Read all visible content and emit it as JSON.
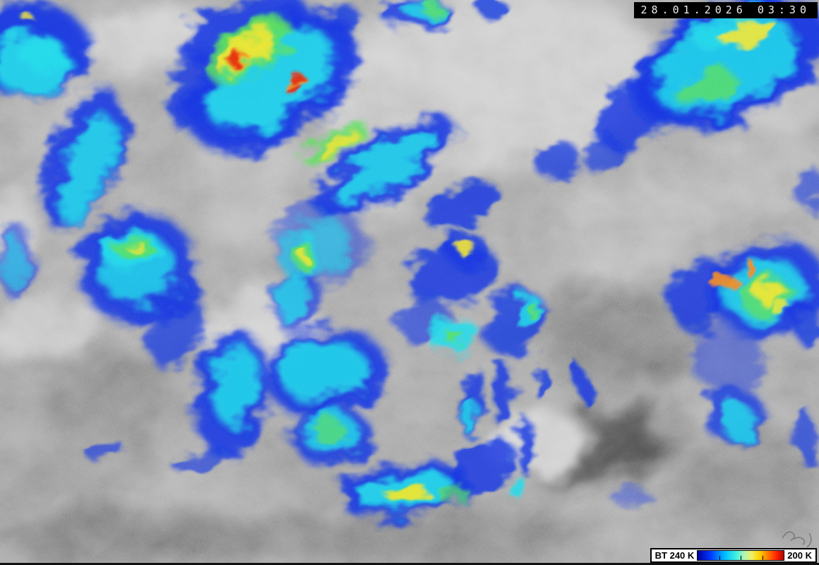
{
  "overlay": {
    "timestamp": "28.01.2026 03:30"
  },
  "legend": {
    "label_left": "BT 240 K",
    "label_right": "200 K",
    "tick_positions": [
      25,
      50,
      75
    ],
    "gradient_stops": [
      {
        "c": "#0000a0",
        "p": 0
      },
      {
        "c": "#0038ff",
        "p": 15
      },
      {
        "c": "#00c0ff",
        "p": 32
      },
      {
        "c": "#40f0e0",
        "p": 45
      },
      {
        "c": "#b8f5b0",
        "p": 55
      },
      {
        "c": "#f0f060",
        "p": 63
      },
      {
        "c": "#ffd000",
        "p": 72
      },
      {
        "c": "#ff7800",
        "p": 82
      },
      {
        "c": "#ff2800",
        "p": 91
      },
      {
        "c": "#b40000",
        "p": 100
      }
    ]
  },
  "scene": {
    "base_gray": "#989898",
    "gray_masses": [
      [
        690,
        110,
        240,
        130,
        -8,
        "#c2c2c2",
        18,
        1
      ],
      [
        560,
        220,
        120,
        80,
        -30,
        "#b5b5b5",
        16,
        0.9
      ],
      [
        205,
        55,
        95,
        45,
        -10,
        "#c6c6c6",
        14,
        0.95
      ],
      [
        100,
        190,
        60,
        90,
        15,
        "#adadad",
        16,
        0.8
      ],
      [
        355,
        260,
        70,
        110,
        0,
        "#b0b0b0",
        18,
        0.8
      ],
      [
        370,
        470,
        85,
        60,
        0,
        "#c6c6c6",
        12,
        0.95
      ],
      [
        70,
        470,
        90,
        45,
        -15,
        "#c0c0c0",
        14,
        0.9
      ],
      [
        40,
        560,
        70,
        50,
        0,
        "#8f8f8f",
        14,
        0.9
      ],
      [
        160,
        560,
        90,
        70,
        0,
        "#7a7a7a",
        16,
        0.9
      ],
      [
        90,
        680,
        140,
        60,
        -5,
        "#8a8a8a",
        18,
        0.95
      ],
      [
        300,
        700,
        150,
        50,
        -8,
        "#a5a5a5",
        14,
        0.9
      ],
      [
        580,
        760,
        250,
        50,
        0,
        "#767676",
        18,
        1
      ],
      [
        450,
        660,
        120,
        45,
        -5,
        "#8d8d8d",
        16,
        0.95
      ],
      [
        900,
        320,
        120,
        70,
        -20,
        "#b0b0b0",
        16,
        0.85
      ],
      [
        880,
        480,
        110,
        70,
        0,
        "#6f6f6f",
        18,
        0.9
      ],
      [
        860,
        628,
        135,
        55,
        -8,
        "#3d3d3d",
        10,
        0.95
      ],
      [
        1060,
        690,
        110,
        70,
        0,
        "#7d7d7d",
        16,
        0.95
      ],
      [
        1080,
        250,
        90,
        60,
        -10,
        "#aaaaaa",
        16,
        0.8
      ],
      [
        760,
        625,
        70,
        45,
        -10,
        "#d4d4d4",
        10,
        0.9
      ],
      [
        980,
        600,
        60,
        40,
        0,
        "#9a9a9a",
        12,
        0.8
      ],
      [
        620,
        440,
        90,
        60,
        0,
        "#9f9f9f",
        16,
        0.7
      ],
      [
        190,
        760,
        200,
        40,
        0,
        "#6e6e6e",
        16,
        1
      ],
      [
        1100,
        140,
        70,
        50,
        0,
        "#b8b8b8",
        14,
        0.8
      ],
      [
        20,
        330,
        40,
        60,
        0,
        "#c2c2c2",
        10,
        0.8
      ]
    ],
    "enhanced_layers": [
      {
        "name": "blue",
        "color": "#1433e0",
        "blobs": [
          [
            40,
            70,
            88,
            68,
            0,
            6,
            0.95
          ],
          [
            118,
            225,
            46,
            105,
            22,
            6,
            0.9
          ],
          [
            195,
            380,
            85,
            80,
            5,
            6,
            0.9
          ],
          [
            22,
            370,
            26,
            55,
            0,
            5,
            0.6
          ],
          [
            250,
            470,
            35,
            55,
            25,
            5,
            0.75
          ],
          [
            385,
            115,
            135,
            82,
            -33,
            6,
            0.95
          ],
          [
            345,
            40,
            95,
            38,
            -20,
            5,
            0.9
          ],
          [
            268,
            125,
            24,
            60,
            12,
            5,
            0.85
          ],
          [
            485,
            28,
            28,
            20,
            0,
            4,
            0.8
          ],
          [
            545,
            235,
            115,
            42,
            -32,
            5,
            0.9
          ],
          [
            655,
            292,
            55,
            22,
            -28,
            4,
            0.85
          ],
          [
            455,
            345,
            68,
            58,
            0,
            6,
            0.5
          ],
          [
            420,
            428,
            32,
            45,
            12,
            5,
            0.7
          ],
          [
            640,
            388,
            68,
            42,
            -12,
            5,
            0.85
          ],
          [
            658,
            350,
            28,
            26,
            0,
            4,
            0.85
          ],
          [
            600,
            452,
            40,
            28,
            -20,
            4,
            0.65
          ],
          [
            730,
            458,
            50,
            42,
            -38,
            5,
            0.8
          ],
          [
            328,
            558,
            52,
            92,
            6,
            6,
            0.9
          ],
          [
            462,
            528,
            88,
            62,
            -8,
            6,
            0.9
          ],
          [
            470,
            618,
            58,
            42,
            0,
            5,
            0.85
          ],
          [
            572,
            693,
            92,
            38,
            -10,
            5,
            0.9
          ],
          [
            680,
            662,
            55,
            30,
            -35,
            4,
            0.85
          ],
          [
            668,
            570,
            14,
            52,
            4,
            4,
            0.85
          ],
          [
            712,
            558,
            14,
            44,
            4,
            4,
            0.85
          ],
          [
            745,
            633,
            12,
            38,
            4,
            4,
            0.85
          ],
          [
            765,
            540,
            10,
            24,
            0,
            3,
            0.8
          ],
          [
            825,
            545,
            10,
            34,
            -20,
            3,
            0.85
          ],
          [
            895,
            705,
            28,
            13,
            0,
            4,
            0.45
          ],
          [
            1035,
            88,
            148,
            82,
            -23,
            6,
            0.95
          ],
          [
            900,
            158,
            68,
            38,
            -38,
            5,
            0.85
          ],
          [
            855,
            220,
            30,
            20,
            -30,
            4,
            0.7
          ],
          [
            1088,
            408,
            85,
            68,
            -12,
            6,
            0.9
          ],
          [
            992,
            418,
            45,
            55,
            8,
            5,
            0.85
          ],
          [
            1145,
            460,
            22,
            30,
            0,
            4,
            0.8
          ],
          [
            1030,
            508,
            55,
            45,
            0,
            5,
            0.5
          ],
          [
            1040,
            588,
            42,
            42,
            0,
            5,
            0.8
          ],
          [
            1140,
            618,
            16,
            38,
            0,
            4,
            0.7
          ],
          [
            588,
            18,
            52,
            20,
            0,
            4,
            0.85
          ],
          [
            700,
            14,
            20,
            16,
            0,
            3,
            0.8
          ],
          [
            790,
            228,
            32,
            28,
            -30,
            4,
            0.75
          ],
          [
            1148,
            268,
            18,
            32,
            0,
            4,
            0.6
          ],
          [
            148,
            638,
            32,
            13,
            0,
            3,
            0.65
          ],
          [
            282,
            652,
            42,
            16,
            -6,
            3,
            0.65
          ]
        ]
      },
      {
        "name": "cyan",
        "color": "#22d9e9",
        "blobs": [
          [
            45,
            92,
            55,
            44,
            0,
            5,
            0.9
          ],
          [
            123,
            240,
            28,
            82,
            20,
            5,
            0.85
          ],
          [
            195,
            382,
            55,
            50,
            0,
            5,
            0.8
          ],
          [
            20,
            372,
            16,
            38,
            0,
            4,
            0.55
          ],
          [
            382,
            112,
            100,
            58,
            -33,
            5,
            0.9
          ],
          [
            545,
            235,
            85,
            26,
            -32,
            4,
            0.85
          ],
          [
            186,
            352,
            40,
            26,
            -8,
            4,
            0.9
          ],
          [
            458,
            348,
            38,
            42,
            0,
            5,
            0.6
          ],
          [
            414,
            424,
            18,
            36,
            12,
            4,
            0.75
          ],
          [
            643,
            476,
            36,
            24,
            -8,
            4,
            0.9
          ],
          [
            747,
            440,
            24,
            17,
            -35,
            3,
            0.85
          ],
          [
            333,
            545,
            33,
            58,
            6,
            5,
            0.85
          ],
          [
            456,
            524,
            62,
            43,
            -8,
            5,
            0.85
          ],
          [
            468,
            613,
            42,
            28,
            0,
            4,
            0.8
          ],
          [
            574,
            695,
            68,
            25,
            -10,
            4,
            0.9
          ],
          [
            1028,
            92,
            108,
            58,
            -23,
            5,
            0.85
          ],
          [
            1082,
            412,
            58,
            43,
            -12,
            5,
            0.85
          ],
          [
            731,
            688,
            12,
            17,
            0,
            3,
            0.85
          ],
          [
            1046,
            598,
            24,
            26,
            0,
            4,
            0.8
          ],
          [
            1040,
            40,
            58,
            28,
            -18,
            4,
            0.8
          ],
          [
            600,
            14,
            30,
            12,
            0,
            3,
            0.8
          ],
          [
            420,
            358,
            28,
            38,
            0,
            4,
            0.6
          ],
          [
            666,
            590,
            9,
            26,
            4,
            3,
            0.8
          ],
          [
            60,
            78,
            32,
            24,
            0,
            4,
            0.85
          ]
        ]
      },
      {
        "name": "green",
        "color": "#55dd55",
        "blobs": [
          [
            352,
            72,
            68,
            26,
            -28,
            4,
            0.85
          ],
          [
            356,
            50,
            55,
            16,
            -22,
            4,
            0.8
          ],
          [
            476,
            204,
            52,
            18,
            -28,
            4,
            0.8
          ],
          [
            189,
            350,
            28,
            16,
            -8,
            3,
            0.85
          ],
          [
            429,
            361,
            15,
            20,
            0,
            3,
            0.85
          ],
          [
            998,
            123,
            44,
            24,
            -18,
            4,
            0.8
          ],
          [
            1086,
            420,
            38,
            26,
            -12,
            4,
            0.8
          ],
          [
            647,
            481,
            13,
            9,
            -8,
            3,
            0.85
          ],
          [
            611,
            11,
            17,
            8,
            0,
            3,
            0.8
          ],
          [
            466,
            611,
            26,
            15,
            0,
            3,
            0.7
          ],
          [
            576,
            699,
            28,
            11,
            -8,
            3,
            0.8
          ],
          [
            753,
            439,
            11,
            7,
            -35,
            2,
            0.8
          ],
          [
            640,
            698,
            22,
            10,
            -15,
            3,
            0.7
          ]
        ]
      },
      {
        "name": "yellow",
        "color": "#f2e430",
        "blobs": [
          [
            350,
            76,
            48,
            14,
            -28,
            3,
            0.9
          ],
          [
            360,
            55,
            30,
            9,
            -22,
            3,
            0.8
          ],
          [
            480,
            206,
            34,
            10,
            -28,
            3,
            0.8
          ],
          [
            1060,
            46,
            40,
            18,
            -18,
            3,
            0.9
          ],
          [
            1090,
            414,
            22,
            13,
            -12,
            3,
            0.9
          ],
          [
            577,
            699,
            30,
            10,
            -8,
            3,
            0.9
          ],
          [
            658,
            349,
            9,
            15,
            0,
            2,
            0.9
          ],
          [
            190,
            347,
            14,
            7,
            -8,
            2,
            0.7
          ],
          [
            429,
            360,
            6,
            9,
            0,
            2,
            0.85
          ],
          [
            38,
            24,
            8,
            6,
            0,
            2,
            0.8
          ],
          [
            1105,
            435,
            16,
            9,
            0,
            2,
            0.8
          ]
        ]
      },
      {
        "name": "orange",
        "color": "#f5821e",
        "blobs": [
          [
            1024,
            399,
            19,
            11,
            0,
            2,
            0.9
          ],
          [
            1066,
            384,
            8,
            12,
            0,
            2,
            0.9
          ],
          [
            417,
            117,
            17,
            8,
            -22,
            2,
            0.9
          ],
          [
            344,
            87,
            13,
            6,
            -28,
            2,
            0.85
          ],
          [
            1042,
            404,
            10,
            7,
            0,
            2,
            0.85
          ]
        ]
      },
      {
        "name": "red",
        "color": "#e3230e",
        "blobs": [
          [
            337,
            89,
            11,
            5,
            -28,
            2,
            0.9
          ],
          [
            420,
            111,
            11,
            6,
            -18,
            2,
            0.9
          ],
          [
            416,
            126,
            13,
            5,
            -12,
            2,
            0.9
          ]
        ]
      }
    ]
  }
}
